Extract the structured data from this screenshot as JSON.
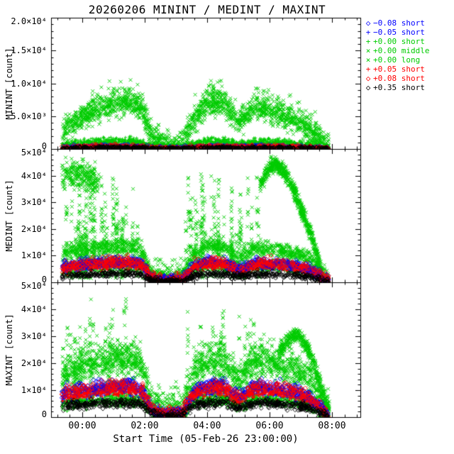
{
  "title": "20260206 MININT / MEDINT / MAXINT",
  "colors": {
    "axis": "#000000",
    "background": "#ffffff",
    "green": "#00cc00",
    "blue": "#0000ff",
    "red": "#ff0000",
    "black": "#000000"
  },
  "x_axis": {
    "label": "Start Time (05-Feb-26 23:00:00)",
    "lim": [
      -1.0,
      8.91
    ],
    "minor_step": 0.4,
    "ticks": [
      {
        "h": 0,
        "label": "00:00"
      },
      {
        "h": 2,
        "label": "02:00"
      },
      {
        "h": 4,
        "label": "04:00"
      },
      {
        "h": 6,
        "label": "06:00"
      },
      {
        "h": 8,
        "label": "08:00"
      }
    ]
  },
  "legend": [
    {
      "symbol": "diamond",
      "color": "#0000ff",
      "label": "−0.08 short"
    },
    {
      "symbol": "plus",
      "color": "#0000ff",
      "label": "−0.05 short"
    },
    {
      "symbol": "plus",
      "color": "#00cc00",
      "label": "+0.00 short"
    },
    {
      "symbol": "cross",
      "color": "#00cc00",
      "label": "+0.00 middle"
    },
    {
      "symbol": "cross",
      "color": "#00cc00",
      "label": "+0.00 long"
    },
    {
      "symbol": "plus",
      "color": "#ff0000",
      "label": "+0.05 short"
    },
    {
      "symbol": "diamond",
      "color": "#ff0000",
      "label": "+0.08 short"
    },
    {
      "symbol": "diamond",
      "color": "#000000",
      "label": "+0.35 short"
    }
  ],
  "chart_data": [
    {
      "type": "scatter",
      "name": "MININT",
      "ylabel": "MININT [count]",
      "ylim": [
        0,
        20000
      ],
      "y_minor_step": 1000,
      "yticks": [
        {
          "v": 0,
          "label": "0"
        },
        {
          "v": 5000,
          "label": "5.0×10³"
        },
        {
          "v": 10000,
          "label": "1.0×10⁴"
        },
        {
          "v": 15000,
          "label": "1.5×10⁴"
        },
        {
          "v": 20000,
          "label": "2.0×10⁴"
        }
      ],
      "profile_t": [
        -0.65,
        -0.3,
        0.1,
        0.5,
        1.0,
        1.5,
        1.9,
        2.25,
        2.7,
        3.2,
        3.6,
        4.1,
        4.6,
        5.0,
        5.5,
        6.0,
        6.6,
        7.2,
        7.9
      ],
      "profiles": {
        "gm": [
          2200,
          4200,
          5200,
          6000,
          6700,
          7100,
          6300,
          1500,
          400,
          700,
          4500,
          7300,
          6800,
          4000,
          6100,
          5900,
          4800,
          3200,
          300
        ],
        "gs": [
          400,
          700,
          900,
          1050,
          1150,
          1150,
          900,
          250,
          130,
          200,
          700,
          1150,
          1050,
          600,
          1000,
          950,
          850,
          550,
          90
        ],
        "bp": [
          180,
          250,
          290,
          310,
          330,
          330,
          290,
          110,
          60,
          90,
          250,
          330,
          320,
          210,
          310,
          300,
          280,
          190,
          40
        ],
        "bk": [
          90,
          140,
          170,
          190,
          205,
          205,
          180,
          70,
          35,
          55,
          150,
          205,
          200,
          130,
          195,
          190,
          175,
          115,
          25
        ]
      },
      "series": [
        {
          "legend": "+0.00 long",
          "color": "#00cc00",
          "symbol": "cross",
          "size": 2.4,
          "parts": [
            {
              "mode": "band",
              "profile": "gm",
              "scale": 1.08,
              "spread": 1300,
              "n": 700
            }
          ]
        },
        {
          "legend": "+0.00 middle",
          "color": "#00cc00",
          "symbol": "cross",
          "size": 2.2,
          "parts": [
            {
              "mode": "band",
              "profile": "gm",
              "scale": 1.0,
              "spread": 850,
              "n": 1400
            }
          ]
        },
        {
          "legend": "+0.00 short",
          "color": "#00cc00",
          "symbol": "plus",
          "size": 2.2,
          "parts": [
            {
              "mode": "band",
              "profile": "gs",
              "scale": 1.0,
              "spread": 300,
              "n": 1500
            }
          ]
        },
        {
          "legend": "−0.05 short",
          "color": "#0000ff",
          "symbol": "plus",
          "size": 2.2,
          "parts": [
            {
              "mode": "band",
              "profile": "bp",
              "scale": 1.0,
              "spread": 140,
              "n": 650
            }
          ]
        },
        {
          "legend": "+0.05 short",
          "color": "#ff0000",
          "symbol": "plus",
          "size": 2.2,
          "parts": [
            {
              "mode": "band",
              "profile": "bp",
              "scale": 1.03,
              "spread": 140,
              "n": 650
            }
          ]
        },
        {
          "legend": "−0.08 short",
          "color": "#0000ff",
          "symbol": "diamond",
          "size": 2.6,
          "parts": [
            {
              "mode": "band",
              "profile": "bp",
              "scale": 1.15,
              "spread": 160,
              "n": 420
            }
          ]
        },
        {
          "legend": "+0.08 short",
          "color": "#ff0000",
          "symbol": "diamond",
          "size": 2.6,
          "parts": [
            {
              "mode": "band",
              "profile": "bp",
              "scale": 1.12,
              "spread": 160,
              "n": 420
            }
          ]
        },
        {
          "legend": "+0.35 short",
          "color": "#000000",
          "symbol": "diamond",
          "size": 2.4,
          "parts": [
            {
              "mode": "band",
              "profile": "bk",
              "scale": 1.0,
              "spread": 100,
              "n": 600
            }
          ]
        }
      ]
    },
    {
      "type": "scatter",
      "name": "MEDINT",
      "ylabel": "MEDINT [count]",
      "ylim": [
        0,
        50000
      ],
      "y_minor_step": 2000,
      "yticks": [
        {
          "v": 0,
          "label": "0"
        },
        {
          "v": 10000,
          "label": "1×10⁴"
        },
        {
          "v": 20000,
          "label": "2×10⁴"
        },
        {
          "v": 30000,
          "label": "3×10⁴"
        },
        {
          "v": 40000,
          "label": "4×10⁴"
        },
        {
          "v": 50000,
          "label": "5×10⁴"
        }
      ],
      "profile_t": [
        -0.65,
        -0.3,
        0.1,
        0.5,
        1.0,
        1.5,
        1.9,
        2.25,
        2.7,
        3.2,
        3.6,
        4.1,
        4.6,
        5.0,
        5.5,
        6.0,
        6.6,
        7.2,
        7.9
      ],
      "profiles": {
        "gm": [
          10500,
          11500,
          12200,
          12800,
          13500,
          13500,
          12000,
          2800,
          1500,
          2200,
          11000,
          13800,
          13000,
          8000,
          12800,
          12800,
          11500,
          9500,
          1300
        ],
        "gs": [
          4800,
          5300,
          5800,
          6100,
          6500,
          6500,
          5800,
          1300,
          750,
          1000,
          5500,
          6800,
          6400,
          4100,
          6200,
          6200,
          5700,
          4600,
          650
        ],
        "bp": [
          5300,
          5900,
          6400,
          6700,
          7100,
          7100,
          6400,
          1400,
          800,
          1100,
          6000,
          7200,
          6900,
          4400,
          6700,
          6700,
          6100,
          5000,
          700
        ],
        "bk": [
          2300,
          2600,
          2850,
          3000,
          3200,
          3200,
          2900,
          750,
          400,
          550,
          2700,
          3250,
          3100,
          2050,
          3050,
          3050,
          2800,
          2250,
          320
        ]
      },
      "series": [
        {
          "legend": "+0.00 long",
          "color": "#00cc00",
          "symbol": "cross",
          "size": 2.4,
          "parts": [
            {
              "mode": "streaks",
              "trange": [
                -0.62,
                1.78
              ],
              "vrange": [
                1500,
                46000
              ],
              "cols": 42,
              "per_col": 13
            },
            {
              "mode": "streaks",
              "trange": [
                3.3,
                5.65
              ],
              "vrange": [
                1500,
                43000
              ],
              "cols": 38,
              "per_col": 11
            },
            {
              "mode": "band",
              "t": [
                -0.65,
                -0.3,
                0.0,
                0.3,
                0.55
              ],
              "v": [
                40000,
                41000,
                40500,
                39000,
                37000
              ],
              "spread": 2600,
              "n": 240
            },
            {
              "mode": "band",
              "t": [
                5.7,
                6.0,
                6.2,
                6.5,
                6.8,
                7.1,
                7.35,
                7.55,
                7.7
              ],
              "v": [
                36000,
                43000,
                44500,
                41000,
                34000,
                25000,
                17000,
                9000,
                3500
              ],
              "spread": 1500,
              "n": 620
            },
            {
              "mode": "uniform",
              "trange": [
                1.8,
                3.3
              ],
              "vrange": [
                800,
                9000
              ],
              "n": 50
            }
          ]
        },
        {
          "legend": "+0.00 middle",
          "color": "#00cc00",
          "symbol": "cross",
          "size": 2.2,
          "parts": [
            {
              "mode": "band",
              "profile": "gm",
              "scale": 1.0,
              "spread": 1500,
              "n": 1400
            }
          ]
        },
        {
          "legend": "+0.00 short",
          "color": "#00cc00",
          "symbol": "plus",
          "size": 2.2,
          "parts": [
            {
              "mode": "band",
              "profile": "gs",
              "scale": 1.0,
              "spread": 1100,
              "n": 1100
            }
          ]
        },
        {
          "legend": "−0.05 short",
          "color": "#0000ff",
          "symbol": "plus",
          "size": 2.2,
          "parts": [
            {
              "mode": "band",
              "profile": "bp",
              "scale": 1.0,
              "spread": 900,
              "n": 850
            }
          ]
        },
        {
          "legend": "+0.05 short",
          "color": "#ff0000",
          "symbol": "plus",
          "size": 2.2,
          "parts": [
            {
              "mode": "band",
              "profile": "bp",
              "scale": 0.95,
              "spread": 900,
              "n": 850
            }
          ]
        },
        {
          "legend": "−0.08 short",
          "color": "#0000ff",
          "symbol": "diamond",
          "size": 2.6,
          "parts": [
            {
              "mode": "band",
              "profile": "bp",
              "scale": 1.15,
              "spread": 1000,
              "n": 480
            }
          ]
        },
        {
          "legend": "+0.08 short",
          "color": "#ff0000",
          "symbol": "diamond",
          "size": 2.6,
          "parts": [
            {
              "mode": "band",
              "profile": "bp",
              "scale": 1.1,
              "spread": 1000,
              "n": 480
            }
          ]
        },
        {
          "legend": "+0.35 short",
          "color": "#000000",
          "symbol": "diamond",
          "size": 2.4,
          "parts": [
            {
              "mode": "band",
              "profile": "bk",
              "scale": 1.0,
              "spread": 600,
              "n": 680
            }
          ]
        }
      ]
    },
    {
      "type": "scatter",
      "name": "MAXINT",
      "ylabel": "MAXINT [count]",
      "ylim": [
        0,
        50000
      ],
      "y_minor_step": 2000,
      "yticks": [
        {
          "v": 0,
          "label": "0"
        },
        {
          "v": 10000,
          "label": "1×10⁴"
        },
        {
          "v": 20000,
          "label": "2×10⁴"
        },
        {
          "v": 30000,
          "label": "3×10⁴"
        },
        {
          "v": 40000,
          "label": "4×10⁴"
        },
        {
          "v": 50000,
          "label": "5×10⁴"
        }
      ],
      "profile_t": [
        -0.65,
        -0.3,
        0.1,
        0.5,
        1.0,
        1.5,
        1.9,
        2.25,
        2.7,
        3.2,
        3.6,
        4.1,
        4.6,
        5.0,
        5.5,
        6.0,
        6.6,
        7.2,
        7.9
      ],
      "profiles": {
        "gm": [
          15500,
          17500,
          19000,
          20000,
          21500,
          21500,
          19500,
          4200,
          2500,
          3200,
          17000,
          22000,
          21000,
          13000,
          20500,
          20500,
          18500,
          15000,
          2100
        ],
        "gs": [
          5000,
          5600,
          6100,
          6400,
          6800,
          6800,
          6100,
          1400,
          800,
          1100,
          5800,
          7000,
          6700,
          4300,
          6500,
          6500,
          5900,
          4800,
          700
        ],
        "bp": [
          7800,
          8700,
          9400,
          9800,
          10400,
          10400,
          9400,
          2100,
          1250,
          1600,
          8800,
          10600,
          10100,
          6500,
          10000,
          10000,
          9100,
          7300,
          1050
        ],
        "bk": [
          3900,
          4350,
          4700,
          4950,
          5250,
          5250,
          4750,
          1150,
          650,
          850,
          4400,
          5300,
          5100,
          3300,
          5050,
          5050,
          4600,
          3700,
          520
        ]
      },
      "series": [
        {
          "legend": "+0.00 long",
          "color": "#00cc00",
          "symbol": "cross",
          "size": 2.4,
          "parts": [
            {
              "mode": "band",
              "profile": "gm",
              "scale": 1.05,
              "spread": 4500,
              "n": 550
            },
            {
              "mode": "streaks",
              "trange": [
                -0.6,
                1.78
              ],
              "vrange": [
                4000,
                45000
              ],
              "cols": 26,
              "per_col": 9
            },
            {
              "mode": "streaks",
              "trange": [
                3.3,
                5.65
              ],
              "vrange": [
                4000,
                43000
              ],
              "cols": 26,
              "per_col": 9
            },
            {
              "mode": "band",
              "t": [
                6.3,
                6.6,
                6.9,
                7.15,
                7.4,
                7.6,
                7.8,
                7.92
              ],
              "v": [
                24000,
                29000,
                31000,
                27000,
                20000,
                13000,
                6000,
                2500
              ],
              "spread": 1500,
              "n": 420
            }
          ]
        },
        {
          "legend": "+0.00 middle",
          "color": "#00cc00",
          "symbol": "cross",
          "size": 2.2,
          "parts": [
            {
              "mode": "band",
              "profile": "gm",
              "scale": 1.0,
              "spread": 2600,
              "n": 1400
            }
          ]
        },
        {
          "legend": "+0.00 short",
          "color": "#00cc00",
          "symbol": "plus",
          "size": 2.2,
          "parts": [
            {
              "mode": "band",
              "profile": "gs",
              "scale": 1.0,
              "spread": 1300,
              "n": 1100
            }
          ]
        },
        {
          "legend": "−0.05 short",
          "color": "#0000ff",
          "symbol": "plus",
          "size": 2.2,
          "parts": [
            {
              "mode": "band",
              "profile": "bp",
              "scale": 1.0,
              "spread": 1100,
              "n": 850
            }
          ]
        },
        {
          "legend": "+0.05 short",
          "color": "#ff0000",
          "symbol": "plus",
          "size": 2.2,
          "parts": [
            {
              "mode": "band",
              "profile": "bp",
              "scale": 0.95,
              "spread": 1100,
              "n": 850
            }
          ]
        },
        {
          "legend": "−0.08 short",
          "color": "#0000ff",
          "symbol": "diamond",
          "size": 2.6,
          "parts": [
            {
              "mode": "band",
              "profile": "bp",
              "scale": 1.18,
              "spread": 1200,
              "n": 480
            }
          ]
        },
        {
          "legend": "+0.08 short",
          "color": "#ff0000",
          "symbol": "diamond",
          "size": 2.6,
          "parts": [
            {
              "mode": "band",
              "profile": "bp",
              "scale": 1.12,
              "spread": 1200,
              "n": 480
            }
          ]
        },
        {
          "legend": "+0.35 short",
          "color": "#000000",
          "symbol": "diamond",
          "size": 2.4,
          "parts": [
            {
              "mode": "band",
              "profile": "bk",
              "scale": 1.0,
              "spread": 800,
              "n": 750
            }
          ]
        }
      ]
    }
  ]
}
